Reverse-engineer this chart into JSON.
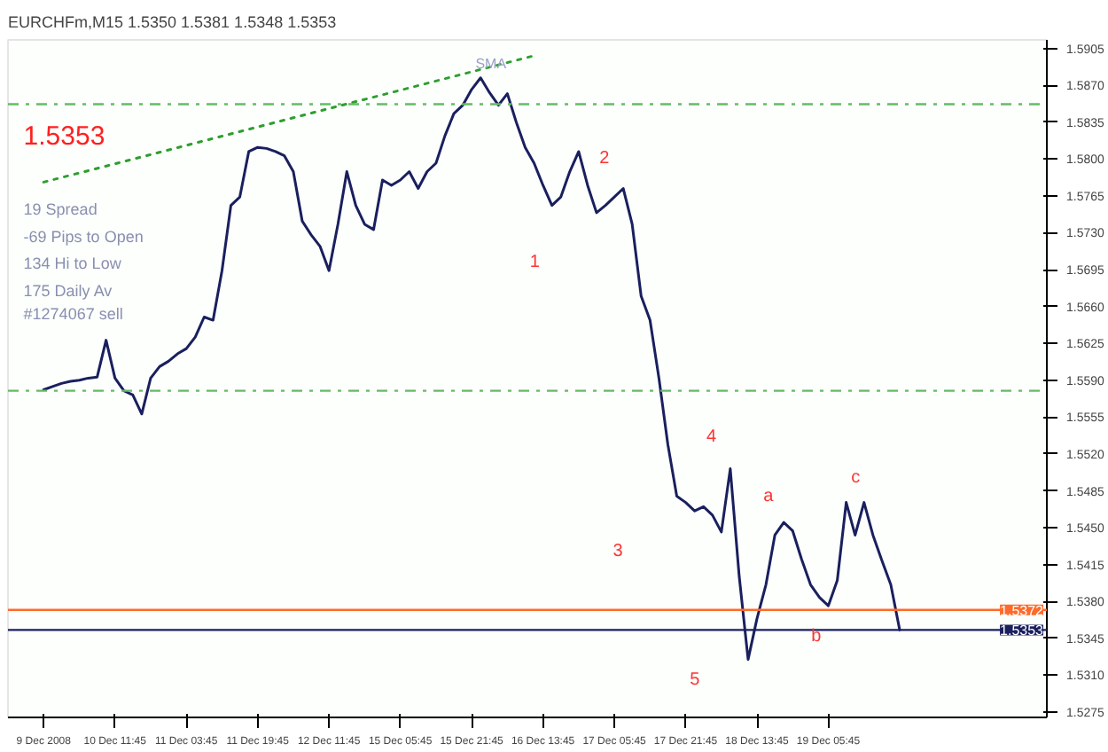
{
  "chart_data": {
    "type": "line",
    "title": "EURCHFm,M15  1.5350  1.5381  1.5348  1.5353",
    "annotations": [
      "1.5353",
      "19 Spread",
      "-69 Pips to Open",
      "134 Hi to Low",
      "175 Daily Av",
      "SMA",
      "#1274067 sell",
      "1",
      "2",
      "3",
      "4",
      "5",
      "a",
      "b",
      "c"
    ],
    "categories": [
      "9 Dec 2008",
      null,
      null,
      null,
      null,
      null,
      null,
      null,
      "10 Dec 11:45",
      null,
      null,
      null,
      null,
      null,
      null,
      null,
      "11 Dec 03:45",
      null,
      null,
      null,
      null,
      null,
      null,
      null,
      "11 Dec 19:45",
      null,
      null,
      null,
      null,
      null,
      null,
      null,
      "12 Dec 11:45",
      null,
      null,
      null,
      null,
      null,
      null,
      null,
      "15 Dec 05:45",
      null,
      null,
      null,
      null,
      null,
      null,
      null,
      "15 Dec 21:45",
      null,
      null,
      null,
      null,
      null,
      null,
      null,
      "16 Dec 13:45",
      null,
      null,
      null,
      null,
      null,
      null,
      null,
      "17 Dec 05:45",
      null,
      null,
      null,
      null,
      null,
      null,
      null,
      "17 Dec 21:45",
      null,
      null,
      null,
      null,
      null,
      null,
      null,
      "18 Dec 13:45",
      null,
      null,
      null,
      null,
      null,
      null,
      null,
      "19 Dec 05:45",
      null,
      null,
      null,
      null,
      null,
      null,
      null,
      null,
      null,
      null,
      null,
      null,
      null,
      null,
      null,
      null,
      null,
      null,
      null,
      null,
      null,
      null,
      null,
      null
    ],
    "series": [
      {
        "color": "#1a1f5e",
        "values": [
          1.5581,
          1.5584,
          1.5587,
          1.5589,
          1.559,
          1.5592,
          1.5593,
          1.5628,
          1.5592,
          1.558,
          1.5576,
          1.5558,
          1.5592,
          1.5603,
          1.5608,
          1.5615,
          1.562,
          1.5631,
          1.565,
          1.5647,
          1.5694,
          1.5756,
          1.5764,
          1.5807,
          1.5811,
          1.581,
          1.5807,
          1.5803,
          1.5788,
          1.5741,
          1.5728,
          1.5717,
          1.5694,
          1.5738,
          1.5788,
          1.5756,
          1.5738,
          1.5733,
          1.578,
          1.5775,
          1.578,
          1.5788,
          1.5772,
          1.5788,
          1.5796,
          1.5822,
          1.5843,
          1.5851,
          1.5866,
          1.5877,
          1.5863,
          1.5851,
          1.5862,
          1.5835,
          1.5811,
          1.5796,
          1.5775,
          1.5756,
          1.5764,
          1.5788,
          1.5807,
          1.5775,
          1.5749,
          1.5756,
          1.5764,
          1.5772,
          1.5738,
          1.567,
          1.5647,
          1.5592,
          1.5529,
          1.548,
          1.5474,
          1.5466,
          1.547,
          1.5462,
          1.5446,
          1.5506,
          1.5404,
          1.5325,
          1.5364,
          1.5396,
          1.5443,
          1.5455,
          1.5447,
          1.542,
          1.5396,
          1.5384,
          1.5376,
          1.54,
          1.5474,
          1.5443,
          1.5474,
          1.5443,
          1.5419,
          1.5396,
          1.5353,
          null,
          null,
          null,
          null,
          null,
          null,
          null,
          null,
          null,
          null,
          null,
          null,
          null,
          null,
          null,
          null
        ]
      },
      {
        "color": "#2e9e2e",
        "line_style": "dotted",
        "values": [
          1.5778,
          null,
          null,
          null,
          null,
          null,
          null,
          null,
          null,
          null,
          null,
          null,
          null,
          null,
          null,
          null,
          null,
          null,
          null,
          null,
          null,
          null,
          null,
          null,
          null,
          null,
          null,
          null,
          null,
          null,
          null,
          null,
          null,
          null,
          null,
          null,
          null,
          null,
          null,
          null,
          null,
          null,
          null,
          null,
          null,
          null,
          null,
          null,
          null,
          null,
          null,
          null,
          null,
          null,
          null,
          1.5898,
          null,
          null,
          null,
          null,
          null,
          null,
          null,
          null,
          null,
          null,
          null,
          null,
          null,
          null,
          null,
          null,
          null,
          null,
          null,
          null,
          null,
          null,
          null,
          null,
          null,
          null,
          null,
          null,
          null,
          null,
          null,
          null,
          null,
          null,
          null,
          null,
          null,
          null,
          null,
          null,
          null,
          null,
          null,
          null,
          null,
          null,
          null,
          null,
          null,
          null,
          null,
          null,
          null,
          null,
          null,
          null,
          null
        ]
      }
    ],
    "ref_lines": [
      {
        "axis": "y",
        "value": 1.5852,
        "color": "#66bb66",
        "line_style": "dashdot"
      },
      {
        "axis": "y",
        "value": 1.558,
        "color": "#66bb66",
        "line_style": "dashdot"
      },
      {
        "axis": "y",
        "value": 1.5372,
        "label": "1.5372",
        "color": "#ff6a2a",
        "line_style": "solid"
      },
      {
        "axis": "y",
        "value": 1.5353,
        "label": "1.5353",
        "color": "#1a1f5e",
        "line_style": "solid"
      }
    ],
    "ylim": [
      1.527,
      1.5913
    ],
    "yticks": [
      1.5275,
      {
        "value": 1.531,
        "label": "1.5310"
      },
      1.5345,
      {
        "value": 1.538,
        "label": "1.5380"
      },
      1.5415,
      {
        "value": 1.545,
        "label": "1.5450"
      },
      1.5485,
      {
        "value": 1.552,
        "label": "1.5520"
      },
      1.5555,
      {
        "value": 1.559,
        "label": "1.5590"
      },
      1.5625,
      {
        "value": 1.566,
        "label": "1.5660"
      },
      1.5695,
      {
        "value": 1.573,
        "label": "1.5730"
      },
      1.5765,
      {
        "value": 1.58,
        "label": "1.5800"
      },
      1.5835,
      {
        "value": 1.587,
        "label": "1.5870"
      },
      1.5905
    ],
    "grid": false,
    "marker": "none",
    "line_style": "solid"
  }
}
